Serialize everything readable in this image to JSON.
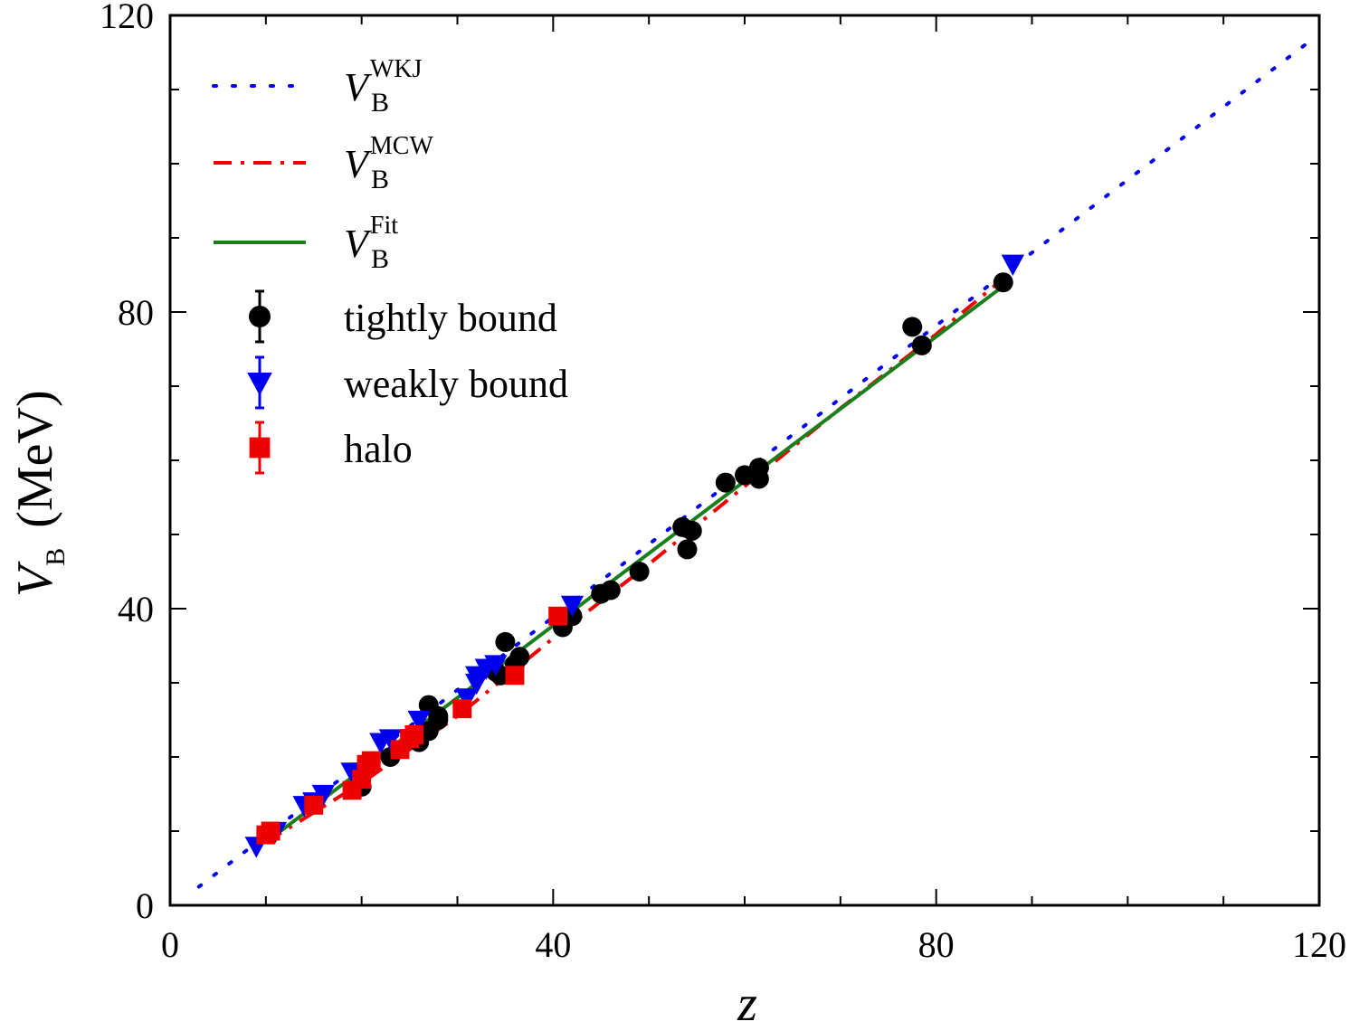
{
  "chart_data": {
    "type": "scatter",
    "title": "",
    "xlabel": "z",
    "ylabel": {
      "main": "V",
      "sub": "B",
      "unit": "(MeV)"
    },
    "xlim": [
      0,
      120
    ],
    "ylim": [
      0,
      120
    ],
    "x_major_ticks": [
      0,
      40,
      80,
      120
    ],
    "y_major_ticks": [
      0,
      40,
      80,
      120
    ],
    "x_minor_step": 10,
    "y_minor_step": 10,
    "grid": false,
    "legend_position": "top-left",
    "colors": {
      "wkj": "#0000ee",
      "mcw": "#ee0000",
      "fit": "#1a7f1a",
      "tightly": "#000000",
      "weakly": "#0000ee",
      "halo": "#ee0000"
    },
    "lines": [
      {
        "id": "wkj",
        "label_main": "V",
        "label_sub": "B",
        "label_sup": "WKJ",
        "style": "dotted",
        "x": [
          3,
          119
        ],
        "y": [
          2.5,
          116.5
        ]
      },
      {
        "id": "mcw",
        "label_main": "V",
        "label_sub": "B",
        "label_sup": "MCW",
        "style": "dashdot",
        "x": [
          10,
          20,
          30,
          40,
          50,
          60,
          70,
          80,
          87
        ],
        "y": [
          8.5,
          16.5,
          25.5,
          36,
          46,
          56.5,
          67,
          77,
          84.5
        ]
      },
      {
        "id": "fit",
        "label_main": "V",
        "label_sub": "B",
        "label_sup": "Fit",
        "style": "solid",
        "x": [
          10,
          87
        ],
        "y": [
          8.5,
          83.5
        ]
      }
    ],
    "series": [
      {
        "id": "tightly",
        "name": "tightly bound",
        "marker": "circle",
        "points": [
          [
            20,
            16
          ],
          [
            23,
            20
          ],
          [
            26,
            22
          ],
          [
            27,
            23.5
          ],
          [
            27,
            27
          ],
          [
            28,
            25
          ],
          [
            28,
            25.5
          ],
          [
            34,
            31.5
          ],
          [
            34.5,
            31
          ],
          [
            35,
            35.5
          ],
          [
            36,
            32.5
          ],
          [
            36.5,
            33.5
          ],
          [
            41,
            37.5
          ],
          [
            42,
            39
          ],
          [
            45,
            42
          ],
          [
            46,
            42.5
          ],
          [
            49,
            45
          ],
          [
            53.5,
            51
          ],
          [
            54,
            48
          ],
          [
            54.5,
            50.5
          ],
          [
            58,
            57
          ],
          [
            60,
            58
          ],
          [
            61.5,
            59
          ],
          [
            61.5,
            57.5
          ],
          [
            77.5,
            78
          ],
          [
            78.5,
            75.5
          ],
          [
            87,
            84
          ]
        ]
      },
      {
        "id": "weakly",
        "name": "weakly bound",
        "marker": "triangle-down",
        "points": [
          [
            9,
            8
          ],
          [
            11,
            10
          ],
          [
            14,
            13.5
          ],
          [
            15,
            14
          ],
          [
            16,
            15
          ],
          [
            19,
            18
          ],
          [
            20,
            18
          ],
          [
            22,
            22
          ],
          [
            23,
            22.5
          ],
          [
            26,
            25
          ],
          [
            31,
            28
          ],
          [
            32,
            30
          ],
          [
            32,
            31
          ],
          [
            33,
            32
          ],
          [
            34,
            32.5
          ],
          [
            42,
            40.5
          ],
          [
            88,
            86.5
          ]
        ]
      },
      {
        "id": "halo",
        "name": "halo",
        "marker": "square",
        "points": [
          [
            10,
            9.5
          ],
          [
            10.5,
            10
          ],
          [
            15,
            13.5
          ],
          [
            19,
            15.5
          ],
          [
            20,
            17
          ],
          [
            20.5,
            19
          ],
          [
            21,
            19.5
          ],
          [
            24,
            21
          ],
          [
            25,
            22.5
          ],
          [
            25.5,
            23
          ],
          [
            30.5,
            26.5
          ],
          [
            36,
            31
          ],
          [
            40.5,
            39
          ]
        ]
      }
    ]
  }
}
